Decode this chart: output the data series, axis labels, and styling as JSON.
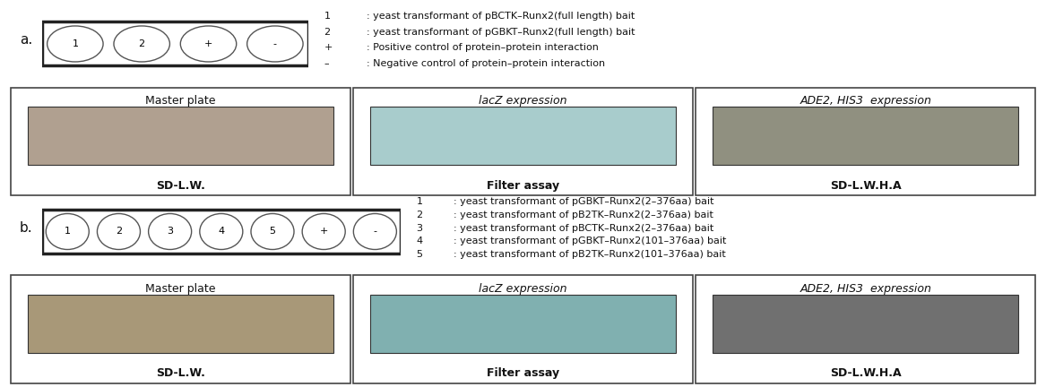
{
  "background_color": "#ffffff",
  "section_a": {
    "label": "a.",
    "circles_a": [
      "1",
      "2",
      "+",
      "-"
    ],
    "legend_a": [
      [
        "1",
        ": yeast transformant of pBCTK–Runx2(full length) bait"
      ],
      [
        "2",
        ": yeast transformant of pGBKT–Runx2(full length) bait"
      ],
      [
        "+",
        ": Positive control of protein–protein interaction"
      ],
      [
        "–",
        ": Negative control of protein–protein interaction"
      ]
    ],
    "plates_a": [
      {
        "title": "Master plate",
        "label": "SD-L.W.",
        "color": "#b0a090",
        "italic": false
      },
      {
        "title": "lacZ expression",
        "label": "Filter assay",
        "color": "#a8cccc",
        "italic": true
      },
      {
        "title": "ADE2, HIS3  expression",
        "label": "SD-L.W.H.A",
        "color": "#909080",
        "italic": true
      }
    ]
  },
  "section_b": {
    "label": "b.",
    "circles_b": [
      "1",
      "2",
      "3",
      "4",
      "5",
      "+",
      "-"
    ],
    "legend_b": [
      [
        "1",
        ": yeast transformant of pGBKT–Runx2(2–376aa) bait"
      ],
      [
        "2",
        ": yeast transformant of pB2TK–Runx2(2–376aa) bait"
      ],
      [
        "3",
        ": yeast transformant of pBCTK–Runx2(2–376aa) bait"
      ],
      [
        "4",
        ": yeast transformant of pGBKT–Runx2(101–376aa) bait"
      ],
      [
        "5",
        ": yeast transformant of pB2TK–Runx2(101–376aa) bait"
      ]
    ],
    "plates_b": [
      {
        "title": "Master plate",
        "label": "SD-L.W.",
        "color": "#a89878",
        "italic": false
      },
      {
        "title": "lacZ expression",
        "label": "Filter assay",
        "color": "#80b0b0",
        "italic": true
      },
      {
        "title": "ADE2, HIS3  expression",
        "label": "SD-L.W.H.A",
        "color": "#707070",
        "italic": true
      }
    ]
  },
  "title_fontsize": 9,
  "label_fontsize": 9,
  "legend_fontsize": 8,
  "circle_fontsize": 8,
  "section_label_fontsize": 11
}
